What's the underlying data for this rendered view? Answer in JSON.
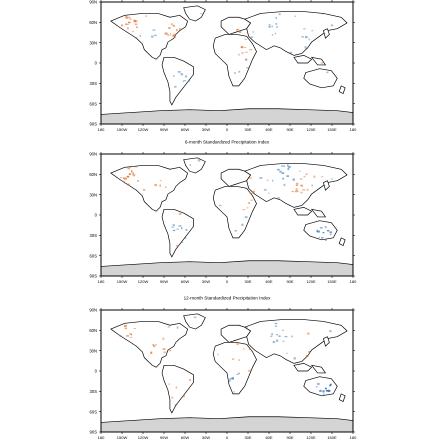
{
  "panels": [
    {
      "title": ""
    },
    {
      "title": "6-month Standardized Precipitation Index"
    },
    {
      "title": "12-month Standardized Precipitation Index"
    }
  ],
  "lat_labels": [
    "90N",
    "60N",
    "30N",
    "0",
    "30S",
    "60S",
    "90S"
  ],
  "lon_labels": [
    "180",
    "150W",
    "120W",
    "90W",
    "60W",
    "30W",
    "0",
    "30E",
    "60E",
    "90E",
    "120E",
    "150E",
    "180"
  ],
  "colors": {
    "wet": "#2166ac",
    "dry": "#d95f0e",
    "antarctica": "#d4d4d4",
    "land": "#ffffff",
    "frame": "#000000"
  }
}
